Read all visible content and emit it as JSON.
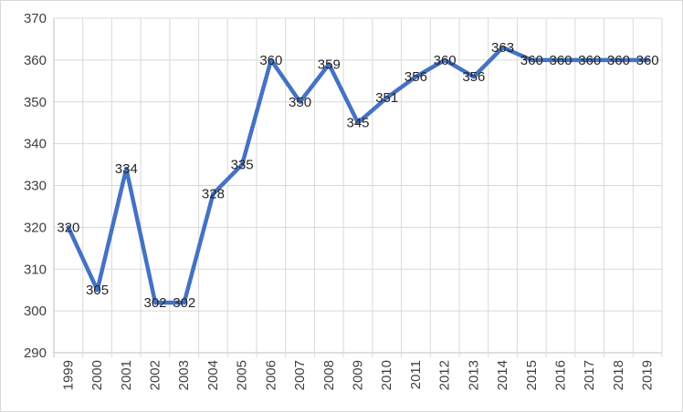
{
  "chart_data": {
    "type": "line",
    "x": [
      "1999",
      "2000",
      "2001",
      "2002",
      "2003",
      "2004",
      "2005",
      "2006",
      "2007",
      "2008",
      "2009",
      "2010",
      "2011",
      "2012",
      "2013",
      "2014",
      "2015",
      "2016",
      "2017",
      "2018",
      "2019"
    ],
    "series": [
      {
        "values": [
          320,
          305,
          334,
          302,
          302,
          328,
          335,
          360,
          350,
          359,
          345,
          351,
          356,
          360,
          356,
          363,
          360,
          360,
          360,
          360,
          360
        ],
        "color": "#4472c4"
      }
    ],
    "yticks": [
      "290",
      "300",
      "310",
      "320",
      "330",
      "340",
      "350",
      "360",
      "370"
    ],
    "ylim": [
      290,
      370
    ],
    "ystep": 10,
    "grid": true,
    "legend": "none",
    "data_labels": true
  }
}
